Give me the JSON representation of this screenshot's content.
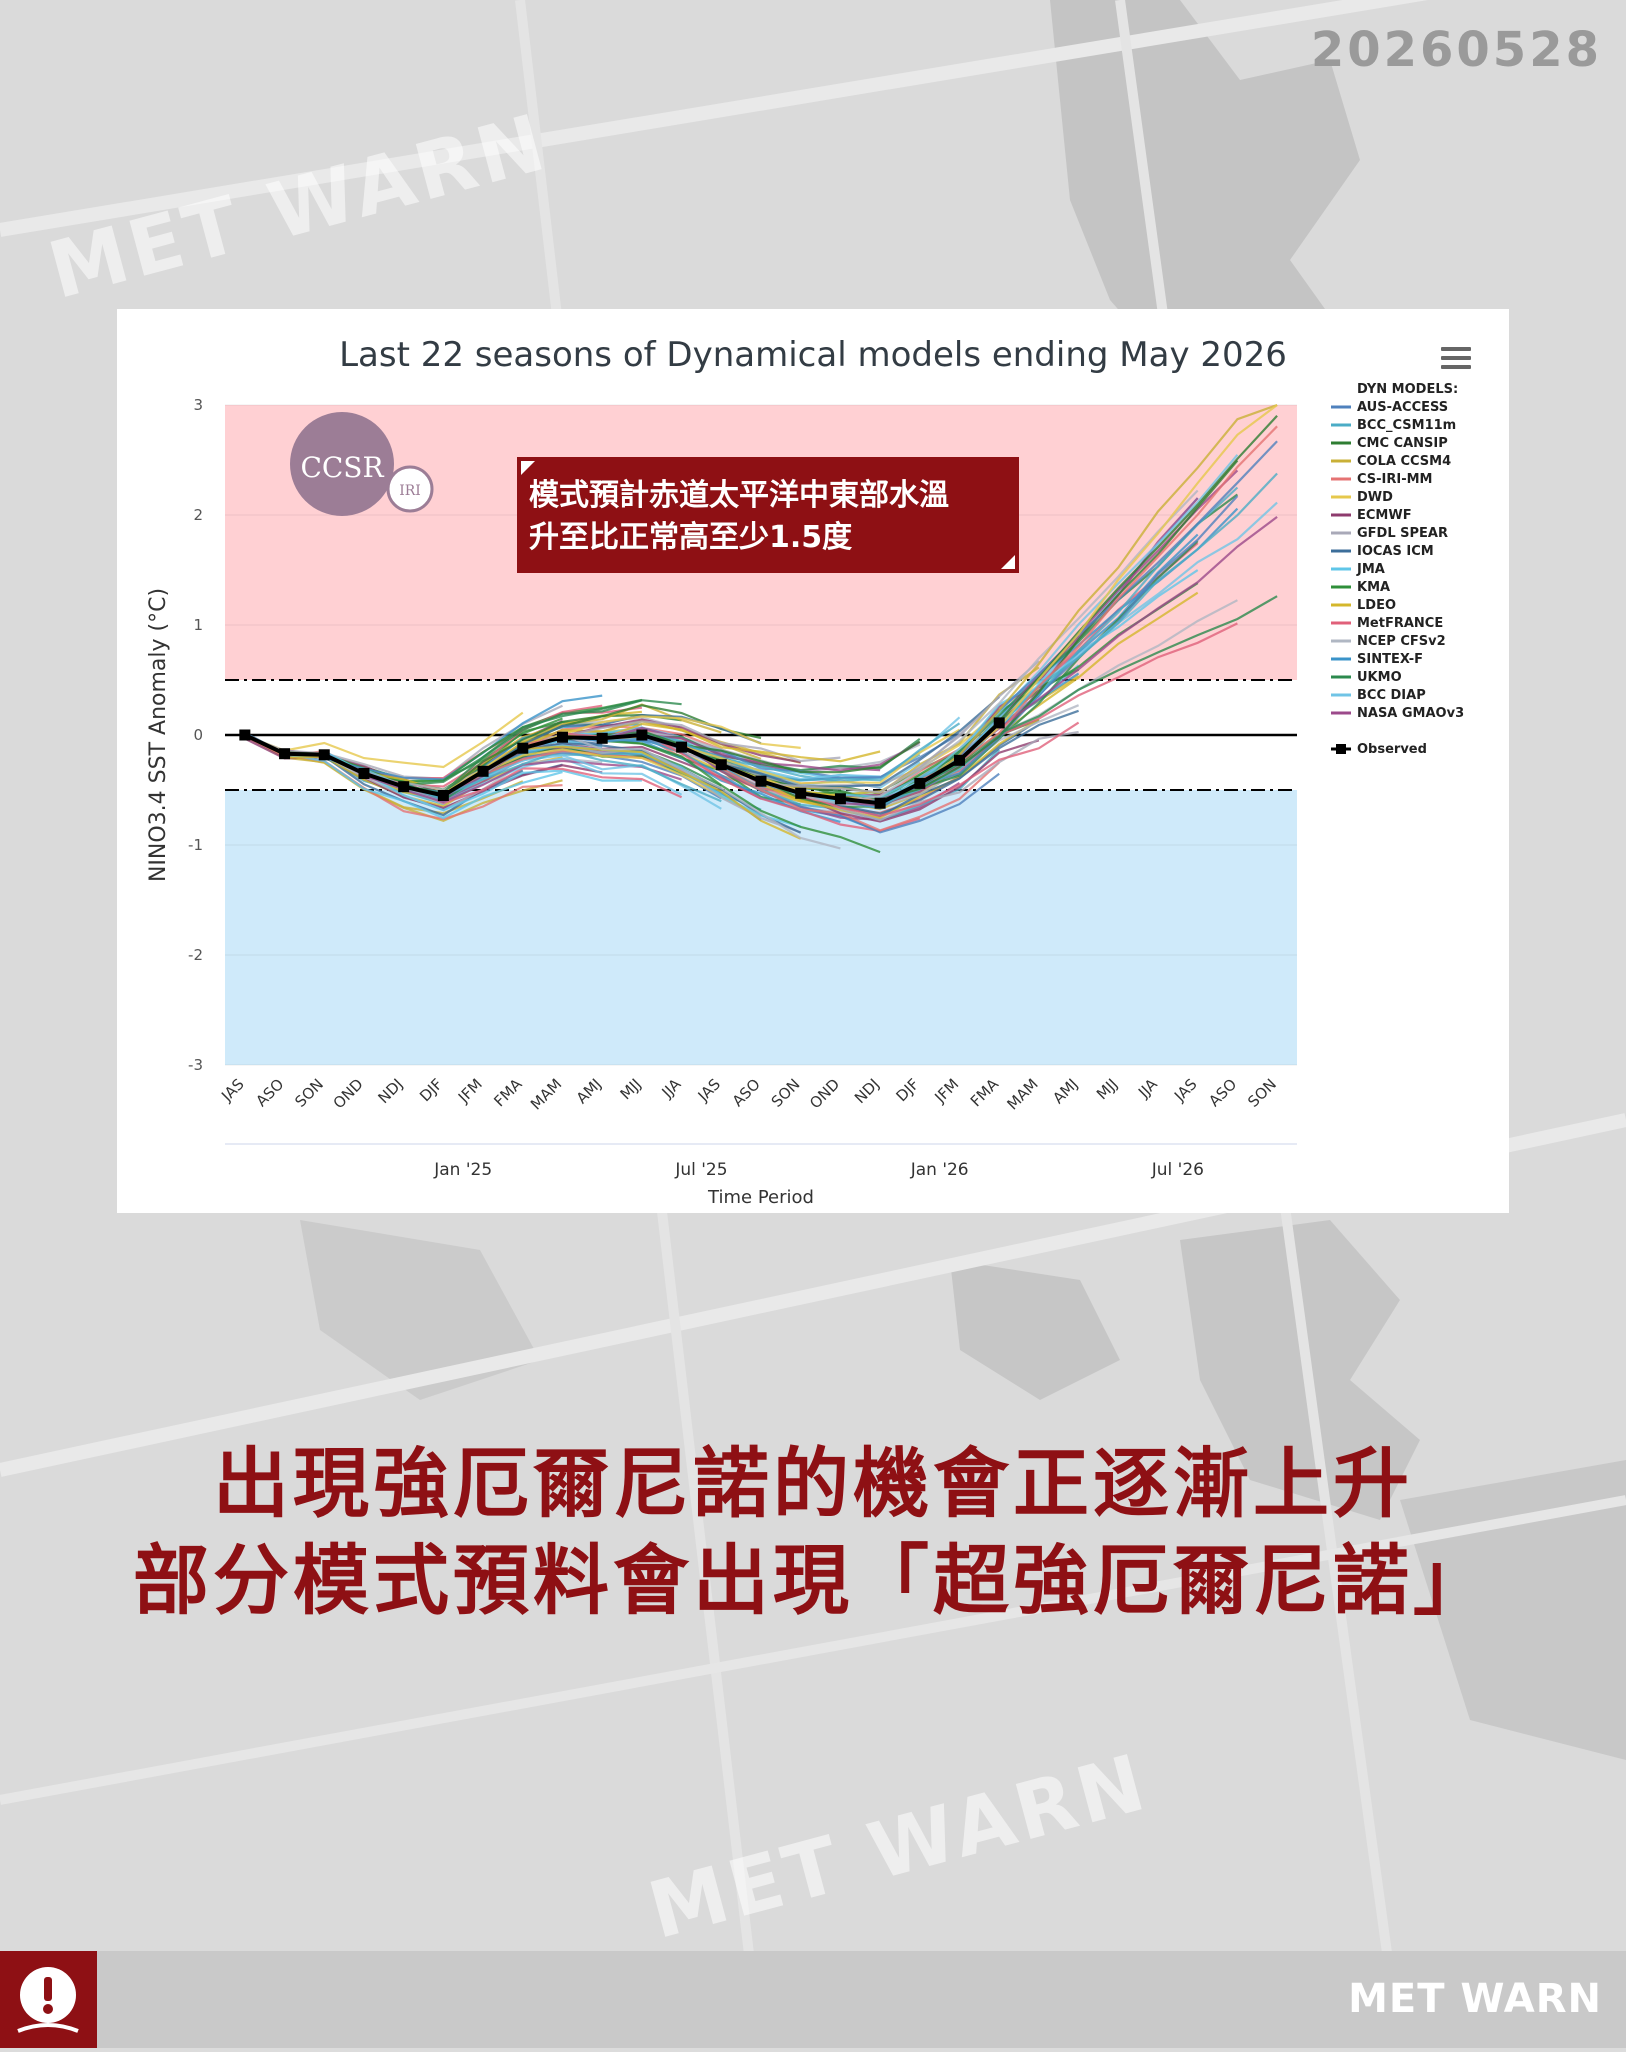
{
  "page": {
    "date": "20260528",
    "watermark": "MET WARN",
    "brand": "MET WARN",
    "headline_line1": "出現強厄爾尼諾的機會正逐漸上升",
    "headline_line2": "部分模式預料會出現「超強厄爾尼諾」"
  },
  "annotation": {
    "line1": "模式預計赤道太平洋中東部水溫",
    "line2": "升至比正常高至少1.5度"
  },
  "logos": {
    "ccsr": "CCSR",
    "iri": "IRI"
  },
  "colors": {
    "warm_band": "#ffd0d3",
    "cool_band": "#cfeafa",
    "annotation_bg": "#8e1014",
    "headline": "#8e1014",
    "observed": "#000000"
  },
  "chart_data": {
    "type": "line",
    "title": "Last 22 seasons of Dynamical models ending May 2026",
    "xlabel": "Time Period",
    "ylabel": "NINO3.4 SST Anomaly (°C)",
    "ylim": [
      -3,
      3
    ],
    "yticks": [
      3,
      2,
      1,
      0,
      -1,
      -2,
      -3
    ],
    "grid": true,
    "legend_position": "right",
    "legend_title": "DYN MODELS:",
    "categories": [
      "JAS",
      "ASO",
      "SON",
      "OND",
      "NDJ",
      "DJF",
      "JFM",
      "FMA",
      "MAM",
      "AMJ",
      "MJJ",
      "JJA",
      "JAS",
      "ASO",
      "SON",
      "OND",
      "NDJ",
      "DJF",
      "JFM",
      "FMA",
      "MAM",
      "AMJ",
      "MJJ",
      "JJA",
      "JAS",
      "ASO",
      "SON"
    ],
    "date_labels": [
      {
        "label": "Jan '25",
        "index": 5.5
      },
      {
        "label": "Jul '25",
        "index": 11.5
      },
      {
        "label": "Jan '26",
        "index": 17.5
      },
      {
        "label": "Jul '26",
        "index": 23.5
      }
    ],
    "thresholds": [
      0.5,
      0,
      -0.5
    ],
    "series": [
      {
        "name": "AUS-ACCESS",
        "color": "#4f81bd"
      },
      {
        "name": "BCC_CSM11m",
        "color": "#4bacc6"
      },
      {
        "name": "CMC CANSIP",
        "color": "#2e7d32"
      },
      {
        "name": "COLA CCSM4",
        "color": "#c9b037"
      },
      {
        "name": "CS-IRI-MM",
        "color": "#e57373"
      },
      {
        "name": "DWD",
        "color": "#e6c84c"
      },
      {
        "name": "ECMWF",
        "color": "#8e3b6e"
      },
      {
        "name": "GFDL SPEAR",
        "color": "#a9a9b8"
      },
      {
        "name": "IOCAS ICM",
        "color": "#3c6e9a"
      },
      {
        "name": "JMA",
        "color": "#5fc6e8"
      },
      {
        "name": "KMA",
        "color": "#2f8f3a"
      },
      {
        "name": "LDEO",
        "color": "#d4b72c"
      },
      {
        "name": "MetFRANCE",
        "color": "#e0607a"
      },
      {
        "name": "NCEP CFSv2",
        "color": "#b0b7c3"
      },
      {
        "name": "SINTEX-F",
        "color": "#3a93c9"
      },
      {
        "name": "UKMO",
        "color": "#2c8a4e"
      },
      {
        "name": "BCC DIAP",
        "color": "#70c4e6"
      },
      {
        "name": "NASA GMAOv3",
        "color": "#9c4a8b"
      }
    ],
    "observed": {
      "name": "Observed",
      "values": [
        0.0,
        -0.17,
        -0.18,
        -0.35,
        -0.47,
        -0.55,
        -0.33,
        -0.12,
        -0.02,
        -0.03,
        0.0,
        -0.11,
        -0.27,
        -0.42,
        -0.53,
        -0.58,
        -0.62,
        -0.44,
        -0.23,
        0.11
      ]
    },
    "forecast_endpoints": [
      3.0,
      2.9,
      2.8,
      2.6,
      2.4,
      2.3,
      2.2,
      2.0,
      1.9,
      1.7,
      1.5,
      1.3,
      1.0,
      0.9,
      0.6,
      0.5,
      0.1,
      -0.2
    ]
  }
}
